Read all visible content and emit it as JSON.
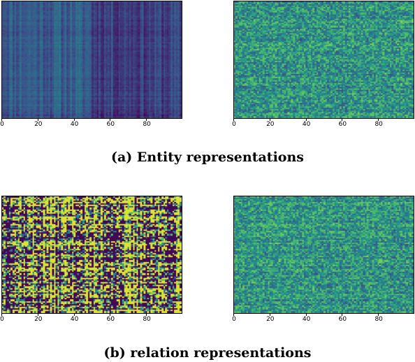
{
  "captions": {
    "a": "(a) Entity representations",
    "b": "(b) relation representations"
  },
  "colormap": {
    "name": "viridis",
    "stops": [
      "#440154",
      "#3b528b",
      "#21918c",
      "#5ec962",
      "#fde725"
    ]
  },
  "chart_data": [
    {
      "type": "heatmap",
      "id": "entity-left",
      "title": "",
      "xlabel": "",
      "ylabel": "",
      "xlim": [
        0,
        99
      ],
      "xticks": [
        0,
        20,
        40,
        60,
        80
      ],
      "columns": 100,
      "rows": 80,
      "pattern": "low values; brighter columns on left half (0-50), darker right half",
      "value_range": [
        0.15,
        0.45
      ]
    },
    {
      "type": "heatmap",
      "id": "entity-right",
      "title": "",
      "xlabel": "",
      "ylabel": "",
      "xlim": [
        0,
        99
      ],
      "xticks": [
        0,
        20,
        40,
        60,
        80
      ],
      "columns": 100,
      "rows": 80,
      "pattern": "mid values around teal/green with noise",
      "value_range": [
        0.35,
        0.8
      ]
    },
    {
      "type": "heatmap",
      "id": "relation-left",
      "title": "",
      "xlabel": "",
      "ylabel": "",
      "xlim": [
        0,
        99
      ],
      "xticks": [
        0,
        20,
        40,
        60,
        80
      ],
      "columns": 100,
      "rows": 80,
      "pattern": "high contrast purple/yellow blocks",
      "value_range": [
        0.0,
        1.0
      ]
    },
    {
      "type": "heatmap",
      "id": "relation-right",
      "title": "",
      "xlabel": "",
      "ylabel": "",
      "xlim": [
        0,
        99
      ],
      "xticks": [
        0,
        20,
        40,
        60,
        80
      ],
      "columns": 100,
      "rows": 80,
      "pattern": "mid values around teal/green with noise",
      "value_range": [
        0.35,
        0.8
      ]
    }
  ]
}
